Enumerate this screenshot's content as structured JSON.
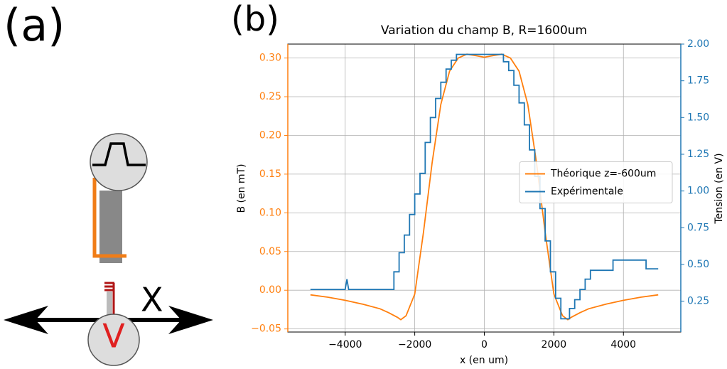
{
  "panel_labels": {
    "a": "(a)",
    "b": "(b)"
  },
  "diagram": {
    "axis_label": "X",
    "meter_label": "V"
  },
  "chart_data": {
    "type": "line",
    "title": "Variation du champ B, R=1600um",
    "xlabel": "x (en um)",
    "ylabel": "B (en mT)",
    "y2label": "Tension (en V)",
    "xlim": [
      -5650,
      5650
    ],
    "ylim": [
      -0.054,
      0.318
    ],
    "y2lim": [
      0.04,
      2.0
    ],
    "xticks": [
      {
        "value": -4000,
        "label": "−4000"
      },
      {
        "value": -2000,
        "label": "−2000"
      },
      0,
      2000,
      4000
    ],
    "yticks": [
      {
        "value": -0.05,
        "label": "−0.05"
      },
      {
        "value": 0,
        "label": "0.00"
      },
      {
        "value": 0.05,
        "label": "0.05"
      },
      {
        "value": 0.1,
        "label": "0.10"
      },
      {
        "value": 0.15,
        "label": "0.15"
      },
      {
        "value": 0.2,
        "label": "0.20"
      },
      {
        "value": 0.25,
        "label": "0.25"
      },
      {
        "value": 0.3,
        "label": "0.30"
      }
    ],
    "y2ticks": [
      {
        "value": 0.25,
        "label": "0.25"
      },
      {
        "value": 0.5,
        "label": "0.50"
      },
      {
        "value": 0.75,
        "label": "0.75"
      },
      {
        "value": 1,
        "label": "1.00"
      },
      {
        "value": 1.25,
        "label": "1.25"
      },
      {
        "value": 1.5,
        "label": "1.50"
      },
      {
        "value": 1.75,
        "label": "1.75"
      },
      {
        "value": 2,
        "label": "2.00"
      }
    ],
    "grid": true,
    "legend": "center right",
    "series": [
      {
        "name": "Théorique z=-600um",
        "color": "#ff7f0e",
        "x": [
          -5000,
          -4500,
          -4000,
          -3500,
          -3000,
          -2750,
          -2500,
          -2400,
          -2250,
          -2000,
          -1750,
          -1500,
          -1250,
          -1000,
          -750,
          -500,
          -250,
          0,
          250,
          500,
          750,
          1000,
          1250,
          1500,
          1750,
          2000,
          2250,
          2400,
          2500,
          2750,
          3000,
          3500,
          4000,
          4500,
          5000
        ],
        "values": [
          -0.006,
          -0.009,
          -0.013,
          -0.018,
          -0.024,
          -0.029,
          -0.035,
          -0.038,
          -0.033,
          -0.005,
          0.075,
          0.165,
          0.24,
          0.283,
          0.3,
          0.305,
          0.303,
          0.301,
          0.303,
          0.305,
          0.3,
          0.283,
          0.24,
          0.165,
          0.075,
          -0.005,
          -0.033,
          -0.038,
          -0.035,
          -0.029,
          -0.024,
          -0.018,
          -0.013,
          -0.009,
          -0.006
        ]
      },
      {
        "name": "Expérimentale",
        "color": "#1f77b4",
        "axis": "y2",
        "x": [
          -5000,
          -4000,
          -3950,
          -3900,
          -2600,
          -2600,
          -2450,
          -2450,
          -2300,
          -2300,
          -2150,
          -2150,
          -2000,
          -2000,
          -1850,
          -1850,
          -1700,
          -1700,
          -1550,
          -1550,
          -1400,
          -1400,
          -1250,
          -1250,
          -1100,
          -1100,
          -950,
          -950,
          -800,
          -800,
          -650,
          -650,
          550,
          550,
          700,
          700,
          850,
          850,
          1000,
          1000,
          1150,
          1150,
          1300,
          1300,
          1450,
          1450,
          1600,
          1600,
          1750,
          1750,
          1900,
          1900,
          2050,
          2050,
          2200,
          2200,
          2450,
          2450,
          2600,
          2600,
          2750,
          2750,
          2900,
          2900,
          3050,
          3050,
          3700,
          3700,
          4650,
          4650,
          5000
        ],
        "values": [
          0.33,
          0.33,
          0.4,
          0.33,
          0.33,
          0.45,
          0.45,
          0.58,
          0.58,
          0.7,
          0.7,
          0.84,
          0.84,
          0.98,
          0.98,
          1.12,
          1.12,
          1.33,
          1.33,
          1.5,
          1.5,
          1.63,
          1.63,
          1.74,
          1.74,
          1.83,
          1.83,
          1.89,
          1.89,
          1.93,
          1.93,
          1.93,
          1.93,
          1.88,
          1.88,
          1.82,
          1.82,
          1.72,
          1.72,
          1.6,
          1.6,
          1.45,
          1.45,
          1.28,
          1.28,
          1.1,
          1.1,
          0.88,
          0.88,
          0.66,
          0.66,
          0.45,
          0.45,
          0.27,
          0.27,
          0.13,
          0.13,
          0.2,
          0.2,
          0.26,
          0.26,
          0.33,
          0.33,
          0.4,
          0.4,
          0.46,
          0.46,
          0.53,
          0.53,
          0.47,
          0.47
        ]
      }
    ]
  }
}
